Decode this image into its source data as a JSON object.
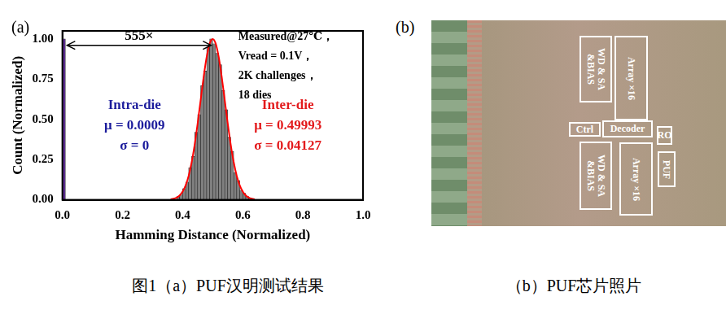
{
  "chart_data": {
    "type": "histogram",
    "x_label": "Hamming Distance (Normalized)",
    "y_label": "Count (Normalized)",
    "xlim": [
      0,
      1
    ],
    "xticks": [
      {
        "value": 0,
        "label": "0.0"
      },
      0.2,
      0.4,
      0.6,
      0.8,
      {
        "value": 1,
        "label": "1.0"
      }
    ],
    "ylim": [
      0,
      1.05
    ],
    "yticks": [
      {
        "value": 0,
        "label": "0.00"
      },
      0.25,
      {
        "value": 0.5,
        "label": "0.50"
      },
      0.75,
      {
        "value": 1,
        "label": "1.00"
      }
    ],
    "grid": false,
    "series": [
      {
        "color": "#5b2c8f",
        "bins": [
          0,
          0.01
        ],
        "values": [
          1.0
        ]
      },
      {
        "color": "#808080",
        "bins": [
          0.38,
          0.39,
          0.4,
          0.41,
          0.42,
          0.43,
          0.44,
          0.45,
          0.46,
          0.47,
          0.48,
          0.49,
          0.5,
          0.51,
          0.52,
          0.53,
          0.54,
          0.55,
          0.56,
          0.57,
          0.58,
          0.59,
          0.6,
          0.61,
          0.62,
          0.63
        ],
        "values": [
          0.02,
          0.03,
          0.07,
          0.11,
          0.2,
          0.27,
          0.42,
          0.53,
          0.71,
          0.8,
          0.95,
          1.0,
          0.97,
          0.91,
          0.84,
          0.68,
          0.56,
          0.39,
          0.3,
          0.17,
          0.12,
          0.06,
          0.04,
          0.02,
          0.01
        ]
      },
      {
        "type": "line",
        "color": "#ff0000",
        "x": [
          0.36,
          0.37,
          0.38,
          0.39,
          0.4,
          0.41,
          0.42,
          0.43,
          0.44,
          0.45,
          0.46,
          0.47,
          0.48,
          0.49,
          0.5,
          0.51,
          0.52,
          0.53,
          0.54,
          0.55,
          0.56,
          0.57,
          0.58,
          0.59,
          0.6,
          0.61,
          0.62,
          0.63,
          0.64
        ],
        "values": [
          0.003,
          0.007,
          0.014,
          0.027,
          0.051,
          0.09,
          0.149,
          0.233,
          0.343,
          0.475,
          0.621,
          0.765,
          0.888,
          0.971,
          1.0,
          0.971,
          0.888,
          0.765,
          0.621,
          0.475,
          0.343,
          0.233,
          0.149,
          0.09,
          0.051,
          0.027,
          0.014,
          0.007,
          0.003
        ]
      }
    ],
    "annotations": [
      {
        "lines": [
          "Measured@27℃，",
          "Vread = 0.1V，",
          "2K challenges，",
          "18 dies"
        ],
        "color": "#000000"
      },
      {
        "lines": [
          "Intra-die",
          "μ = 0.0009",
          "σ = 0"
        ],
        "color": "#1c1c9c"
      },
      {
        "lines": [
          "Inter-die",
          "μ = 0.49993",
          "σ = 0.04127"
        ],
        "color": "#e31a1c"
      },
      {
        "lines": [
          "555×"
        ],
        "color": "#000000"
      }
    ]
  },
  "panel_labels": [
    "(a)",
    "(b)"
  ],
  "photo": {
    "labels": [
      {
        "lines": [
          "WD & SA",
          "&BIAS"
        ]
      },
      {
        "lines": [
          "Array ×16"
        ]
      },
      {
        "lines": [
          "Ctrl"
        ]
      },
      {
        "lines": [
          "Decoder"
        ]
      },
      {
        "lines": [
          "RO"
        ]
      },
      {
        "lines": [
          "PUF"
        ]
      },
      {
        "lines": [
          "WD & SA",
          "&BIAS"
        ]
      },
      {
        "lines": [
          "Array ×16"
        ]
      }
    ]
  },
  "captions": [
    "图1（a）PUF汉明测试结果",
    "（b）PUF芯片照片"
  ]
}
